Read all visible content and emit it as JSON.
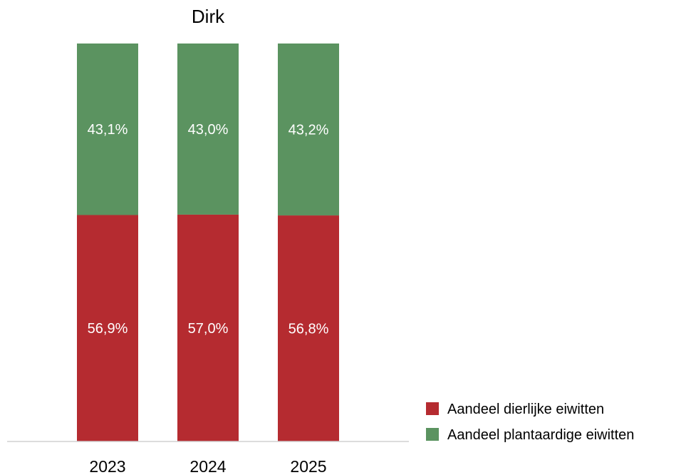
{
  "chart_data": {
    "type": "bar",
    "stacked": true,
    "title": "Dirk",
    "categories": [
      "2023",
      "2024",
      "2025"
    ],
    "series": [
      {
        "name": "Aandeel dierlijke eiwitten",
        "color": "#b52b30",
        "values": [
          56.9,
          57.0,
          56.8
        ],
        "labels": [
          "56,9%",
          "57,0%",
          "56,8%"
        ]
      },
      {
        "name": "Aandeel plantaardige eiwitten",
        "color": "#5b9360",
        "values": [
          43.1,
          43.0,
          43.2
        ],
        "labels": [
          "43,1%",
          "43,0%",
          "43,2%"
        ]
      }
    ],
    "ylim": [
      0,
      100
    ],
    "unit": "%",
    "legend_position": "bottom-right",
    "grid": false
  }
}
